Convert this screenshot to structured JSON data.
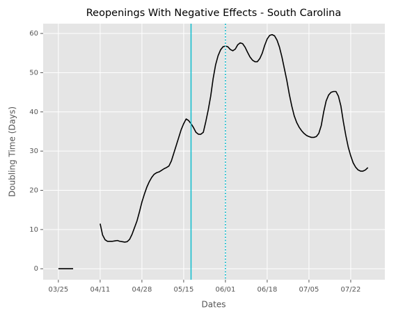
{
  "chart_data": {
    "type": "line",
    "title": "Reopenings With Negative Effects - South Carolina",
    "xlabel": "Dates",
    "ylabel": "Doubling Time (Days)",
    "categories": [
      "03/25",
      null,
      null,
      null,
      null,
      null,
      null,
      null,
      null,
      null,
      null,
      null,
      null,
      null,
      null,
      null,
      null,
      "04/11",
      null,
      null,
      null,
      null,
      null,
      null,
      null,
      null,
      null,
      null,
      null,
      null,
      null,
      null,
      null,
      null,
      "04/28",
      null,
      null,
      null,
      null,
      null,
      null,
      null,
      null,
      null,
      null,
      null,
      null,
      null,
      null,
      null,
      null,
      "05/15",
      null,
      null,
      null,
      null,
      null,
      null,
      null,
      null,
      null,
      null,
      null,
      null,
      null,
      null,
      null,
      null,
      "06/01",
      null,
      null,
      null,
      null,
      null,
      null,
      null,
      null,
      null,
      null,
      null,
      null,
      null,
      null,
      null,
      null,
      "06/18",
      null,
      null,
      null,
      null,
      null,
      null,
      null,
      null,
      null,
      null,
      null,
      null,
      null,
      null,
      null,
      null,
      "07/05",
      null,
      null,
      null,
      null,
      null,
      null,
      null,
      null,
      null,
      null,
      null,
      null,
      null,
      null,
      null,
      null,
      "07/22",
      null,
      null,
      null,
      null,
      null,
      null,
      null
    ],
    "values": [
      0,
      0,
      0,
      0,
      0,
      0,
      0,
      null,
      null,
      null,
      null,
      null,
      null,
      null,
      null,
      null,
      null,
      11.5,
      8.6,
      7.4,
      7.0,
      7.0,
      7.0,
      7.1,
      7.2,
      7.0,
      6.9,
      6.8,
      6.9,
      7.5,
      8.8,
      10.5,
      12.2,
      14.5,
      17,
      19,
      20.8,
      22.2,
      23.3,
      24.1,
      24.5,
      24.7,
      25.1,
      25.5,
      25.8,
      26.2,
      27.5,
      29.5,
      31.5,
      33.5,
      35.5,
      37,
      38.2,
      37.8,
      37,
      36,
      34.8,
      34.3,
      34.3,
      34.8,
      37.5,
      40.5,
      44,
      48.5,
      52,
      54.3,
      55.8,
      56.6,
      56.8,
      56.6,
      55.9,
      55.6,
      56,
      57.1,
      57.6,
      57.4,
      56.5,
      55.2,
      54,
      53.2,
      52.8,
      52.8,
      53.6,
      55,
      57,
      58.6,
      59.5,
      59.7,
      59.4,
      58.3,
      56.5,
      54,
      51,
      48,
      44.5,
      41.5,
      39,
      37.3,
      36.1,
      35.2,
      34.5,
      34,
      33.7,
      33.5,
      33.5,
      33.7,
      34.5,
      36.5,
      40,
      42.8,
      44.3,
      45,
      45.2,
      45.2,
      44,
      41.5,
      37.5,
      34,
      31,
      28.8,
      27,
      25.9,
      25.2,
      24.9,
      24.9,
      25.2,
      25.8
    ],
    "color": "#000000",
    "xlim": [
      -6.2,
      132.9
    ],
    "ylim": [
      -2.8,
      62.5
    ],
    "yticks": [
      0,
      10,
      20,
      30,
      40,
      50,
      60
    ],
    "grid": true,
    "vlines": [
      {
        "x": 54,
        "style": "solid",
        "color": "#17becf"
      },
      {
        "x": 68,
        "style": "dotted",
        "color": "#17becf"
      }
    ]
  }
}
